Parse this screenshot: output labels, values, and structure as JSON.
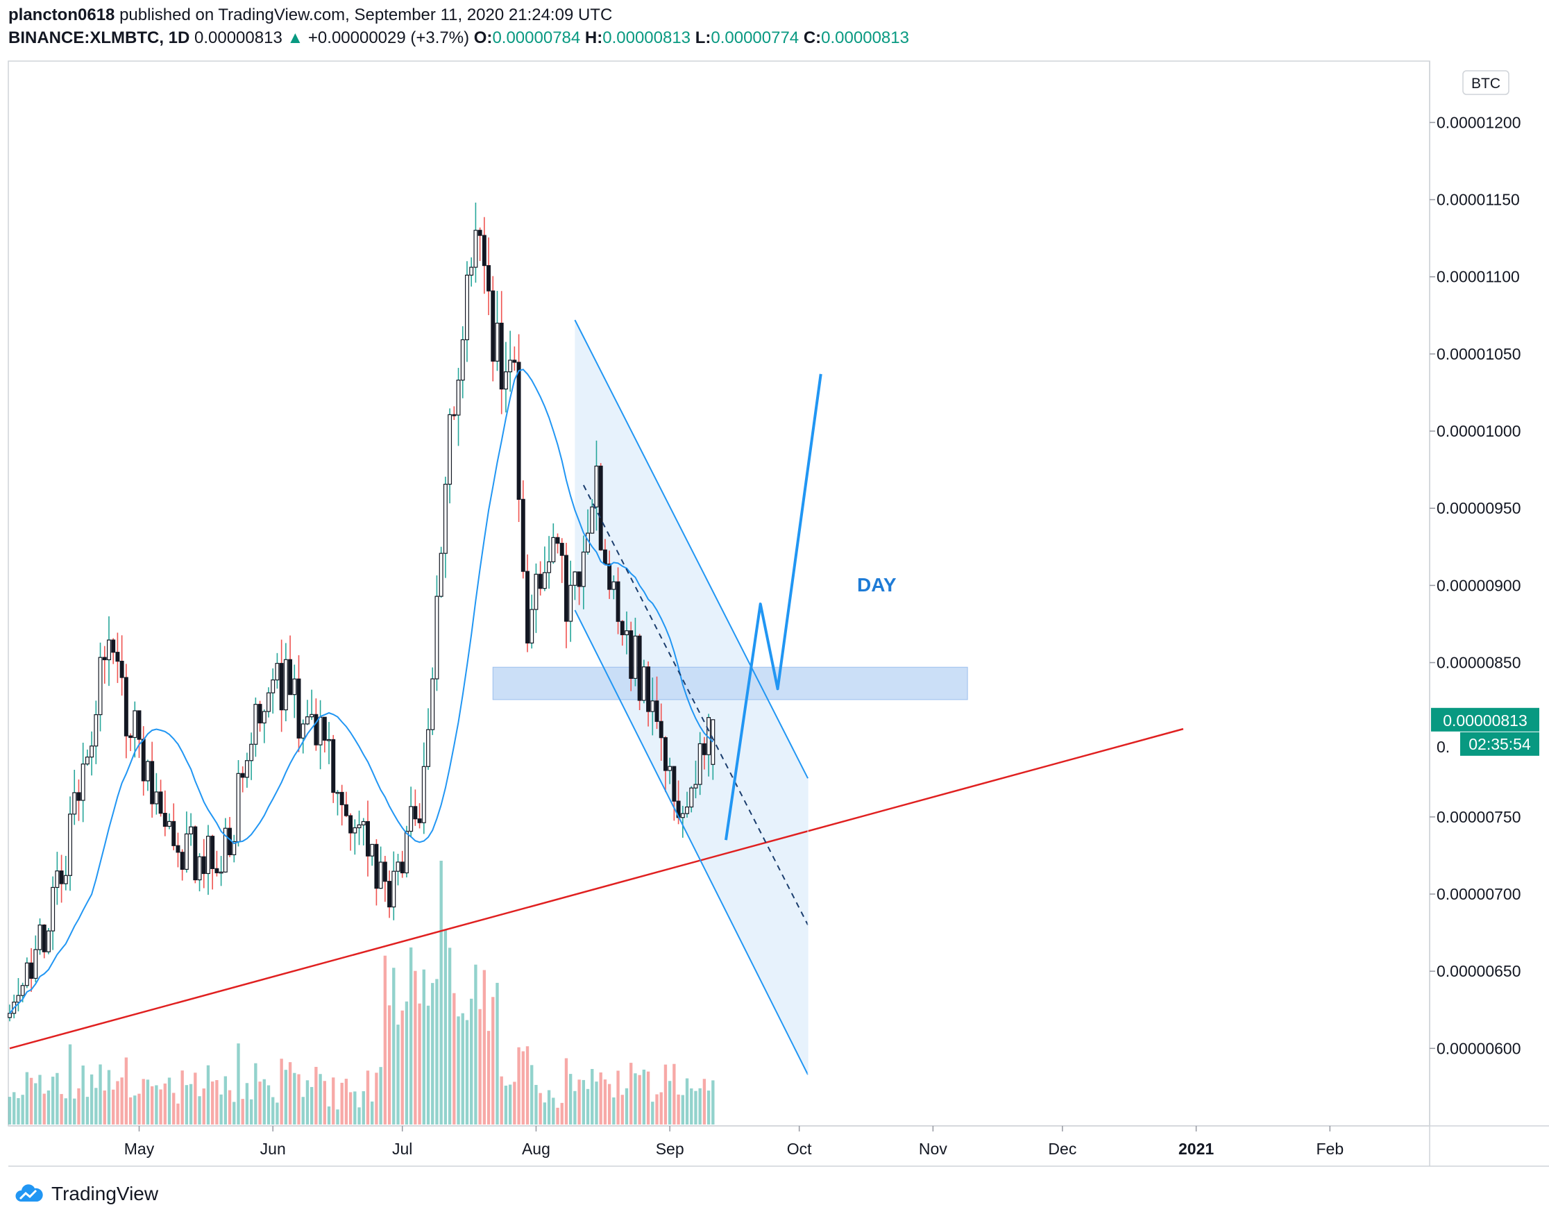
{
  "header": {
    "author": "plancton0618",
    "published_text": "published on TradingView.com, September 11, 2020 21:24:09 UTC",
    "symbol": "BINANCE:XLMBTC, 1D",
    "last": "0.00000813",
    "change_arrow": "▲",
    "change": "+0.00000029 (+3.7%)",
    "o_label": "O:",
    "o_value": "0.00000784",
    "h_label": "H:",
    "h_value": "0.00000813",
    "l_label": "L:",
    "l_value": "0.00000774",
    "c_label": "C:",
    "c_value": "0.00000813"
  },
  "footer": {
    "brand": "TradingView",
    "logo_icon": "tradingview-cloud-icon"
  },
  "colors": {
    "up": "#26a69a",
    "down": "#ef5350",
    "candle": "#131722",
    "ma": "#2196f3",
    "trend": "#e02020",
    "accent": "#089981",
    "channel_fill": "#e3f0fc",
    "zone_fill": "#c6dcf7"
  },
  "chart_data": {
    "type": "candlestick",
    "currency_badge": "BTC",
    "price_axis": {
      "ticks": [
        "0.00001200",
        "0.00001150",
        "0.00001100",
        "0.00001050",
        "0.00001000",
        "0.00000950",
        "0.00000900",
        "0.00000850",
        "0.00000750",
        "0.00000700",
        "0.00000650",
        "0.00000600"
      ],
      "ylim": [
        5.5e-06,
        1.24e-05
      ]
    },
    "time_axis": {
      "labels": [
        "May",
        "Jun",
        "Jul",
        "Aug",
        "Sep",
        "Oct",
        "Nov",
        "Dec",
        "2021",
        "Feb"
      ]
    },
    "last_price_label": "0.00000813",
    "countdown_label": "02:35:54",
    "partial_tick": "0.",
    "annotation_text": "DAY",
    "anchors": [
      {
        "date": "2020-04-01",
        "price": 6.2e-06
      },
      {
        "date": "2020-04-12",
        "price": 7e-06
      },
      {
        "date": "2020-04-24",
        "price": 8.6e-06
      },
      {
        "date": "2020-05-08",
        "price": 7.3e-06
      },
      {
        "date": "2020-05-20",
        "price": 7.2e-06
      },
      {
        "date": "2020-06-01",
        "price": 8.5e-06
      },
      {
        "date": "2020-06-15",
        "price": 7.8e-06
      },
      {
        "date": "2020-06-28",
        "price": 6.9e-06
      },
      {
        "date": "2020-07-05",
        "price": 7.6e-06
      },
      {
        "date": "2020-07-12",
        "price": 9.9e-06
      },
      {
        "date": "2020-07-18",
        "price": 1.13e-05
      },
      {
        "date": "2020-07-24",
        "price": 1.03e-05
      },
      {
        "date": "2020-07-27",
        "price": 1.03e-05
      },
      {
        "date": "2020-07-30",
        "price": 8.6e-06
      },
      {
        "date": "2020-08-03",
        "price": 9.3e-06
      },
      {
        "date": "2020-08-08",
        "price": 8.9e-06
      },
      {
        "date": "2020-08-15",
        "price": 9.6e-06
      },
      {
        "date": "2020-08-20",
        "price": 8.7e-06
      },
      {
        "date": "2020-08-28",
        "price": 8.3e-06
      },
      {
        "date": "2020-09-03",
        "price": 7.5e-06
      },
      {
        "date": "2020-09-07",
        "price": 7.7e-06
      },
      {
        "date": "2020-09-11",
        "price": 8.13e-06
      }
    ],
    "volume_spike": {
      "date": "2020-07-10"
    },
    "drawings": {
      "trendline": [
        {
          "date": "2020-04-01",
          "price": 6e-06
        },
        {
          "date": "2020-12-29",
          "price": 8.07e-06
        }
      ],
      "channel_upper": [
        {
          "date": "2020-08-10",
          "price": 1.072e-05
        },
        {
          "date": "2020-10-03",
          "price": 7.75e-06
        }
      ],
      "channel_lower": [
        {
          "date": "2020-08-10",
          "price": 8.84e-06
        },
        {
          "date": "2020-10-03",
          "price": 5.83e-06
        }
      ],
      "channel_mid": [
        {
          "date": "2020-08-12",
          "price": 9.65e-06
        },
        {
          "date": "2020-10-03",
          "price": 6.8e-06
        }
      ],
      "zone": {
        "from": "2020-07-22",
        "to": "2020-11-09",
        "top": 8.47e-06,
        "bottom": 8.26e-06
      },
      "projection": [
        {
          "date": "2020-09-14",
          "price": 7.35e-06
        },
        {
          "date": "2020-09-22",
          "price": 8.88e-06
        },
        {
          "date": "2020-09-26",
          "price": 8.33e-06
        },
        {
          "date": "2020-10-06",
          "price": 1.037e-05
        }
      ]
    }
  }
}
